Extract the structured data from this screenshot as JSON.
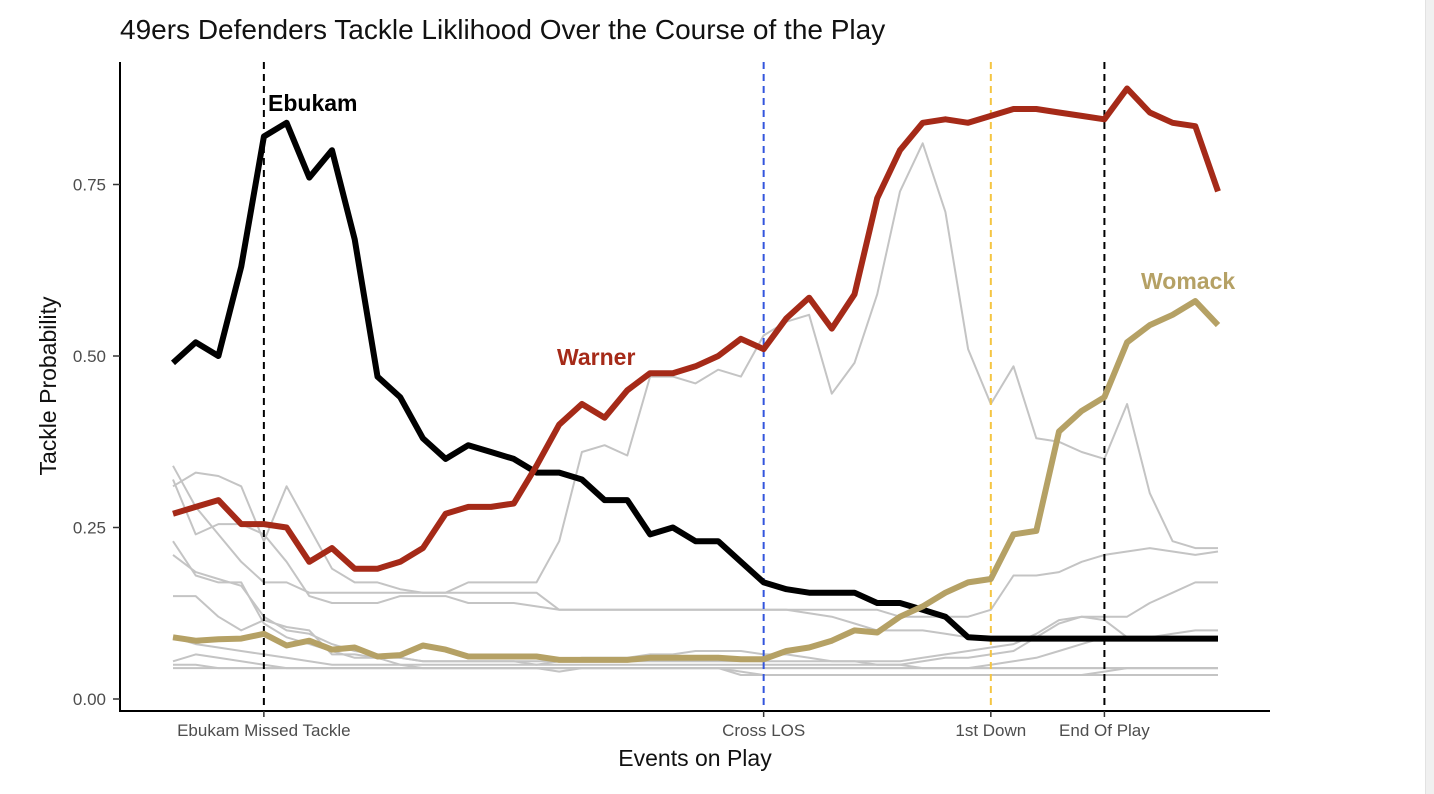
{
  "chart_data": {
    "type": "line",
    "title": "49ers Defenders Tackle Liklihood Over the Course of the Play",
    "xlabel": "Events on Play",
    "ylabel": "Tackle Probability",
    "ylim": [
      0,
      0.9
    ],
    "y_ticks": [
      {
        "value": 0,
        "label": "0.00"
      },
      {
        "value": 0.25,
        "label": "0.25"
      },
      {
        "value": 0.5,
        "label": "0.50"
      },
      {
        "value": 0.75,
        "label": "0.75"
      }
    ],
    "xlim": [
      1,
      47
    ],
    "events": [
      {
        "frame": 5,
        "label": "Ebukam Missed Tackle",
        "color": "#000000"
      },
      {
        "frame": 27,
        "label": "Cross LOS",
        "color": "#3355dd"
      },
      {
        "frame": 37,
        "label": "1st Down",
        "color": "#f5c542"
      },
      {
        "frame": 42,
        "label": "End Of Play",
        "color": "#000000"
      }
    ],
    "grid": false,
    "legend": "none",
    "highlighted_series": [
      {
        "name": "Ebukam",
        "color": "#000000",
        "values": [
          0.49,
          0.52,
          0.5,
          0.63,
          0.82,
          0.84,
          0.76,
          0.8,
          0.67,
          0.47,
          0.44,
          0.38,
          0.35,
          0.37,
          0.36,
          0.35,
          0.33,
          0.33,
          0.32,
          0.29,
          0.29,
          0.24,
          0.25,
          0.23,
          0.23,
          0.2,
          0.17,
          0.16,
          0.155,
          0.155,
          0.155,
          0.14,
          0.14,
          0.13,
          0.12,
          0.09,
          0.088,
          0.088,
          0.088,
          0.088,
          0.088,
          0.088,
          0.088,
          0.088,
          0.088,
          0.088,
          0.088
        ]
      },
      {
        "name": "Warner",
        "color": "#a52a18",
        "values": [
          0.27,
          0.28,
          0.29,
          0.255,
          0.255,
          0.25,
          0.2,
          0.22,
          0.19,
          0.19,
          0.2,
          0.22,
          0.27,
          0.28,
          0.28,
          0.285,
          0.34,
          0.4,
          0.43,
          0.41,
          0.45,
          0.475,
          0.475,
          0.485,
          0.5,
          0.525,
          0.51,
          0.555,
          0.585,
          0.54,
          0.59,
          0.73,
          0.8,
          0.84,
          0.845,
          0.84,
          0.85,
          0.86,
          0.86,
          0.855,
          0.85,
          0.845,
          0.89,
          0.855,
          0.84,
          0.835,
          0.74
        ]
      },
      {
        "name": "Womack",
        "color": "#b5a165",
        "values": [
          0.09,
          0.085,
          0.087,
          0.088,
          0.095,
          0.078,
          0.085,
          0.072,
          0.075,
          0.062,
          0.064,
          0.078,
          0.072,
          0.062,
          0.062,
          0.062,
          0.062,
          0.057,
          0.057,
          0.057,
          0.057,
          0.06,
          0.06,
          0.06,
          0.06,
          0.058,
          0.058,
          0.07,
          0.075,
          0.085,
          0.1,
          0.097,
          0.12,
          0.135,
          0.155,
          0.17,
          0.175,
          0.24,
          0.245,
          0.39,
          0.42,
          0.44,
          0.52,
          0.545,
          0.56,
          0.58,
          0.545
        ]
      }
    ],
    "background_series": [
      {
        "values": [
          0.34,
          0.28,
          0.24,
          0.2,
          0.17,
          0.17,
          0.155,
          0.155,
          0.155,
          0.155,
          0.155,
          0.155,
          0.155,
          0.17,
          0.17,
          0.17,
          0.17,
          0.23,
          0.36,
          0.37,
          0.355,
          0.47,
          0.47,
          0.46,
          0.48,
          0.47,
          0.53,
          0.55,
          0.56,
          0.445,
          0.49,
          0.59,
          0.74,
          0.81,
          0.71,
          0.51,
          0.43,
          0.485,
          0.38,
          0.375,
          0.36,
          0.35,
          0.43,
          0.3,
          0.23,
          0.22,
          0.22
        ]
      },
      {
        "values": [
          0.31,
          0.33,
          0.325,
          0.31,
          0.23,
          0.31,
          0.25,
          0.19,
          0.17,
          0.17,
          0.16,
          0.155,
          0.155,
          0.155,
          0.155,
          0.155,
          0.155,
          0.13,
          0.13,
          0.13,
          0.13,
          0.13,
          0.13,
          0.13,
          0.13,
          0.13,
          0.13,
          0.13,
          0.13,
          0.13,
          0.13,
          0.13,
          0.12,
          0.12,
          0.12,
          0.12,
          0.13,
          0.18,
          0.18,
          0.185,
          0.2,
          0.21,
          0.215,
          0.22,
          0.215,
          0.21,
          0.215
        ]
      },
      {
        "values": [
          0.32,
          0.24,
          0.255,
          0.255,
          0.24,
          0.2,
          0.15,
          0.14,
          0.14,
          0.14,
          0.15,
          0.15,
          0.15,
          0.14,
          0.14,
          0.14,
          0.135,
          0.13,
          0.13,
          0.13,
          0.13,
          0.13,
          0.13,
          0.13,
          0.13,
          0.13,
          0.13,
          0.13,
          0.125,
          0.12,
          0.11,
          0.1,
          0.1,
          0.1,
          0.095,
          0.09,
          0.09,
          0.09,
          0.09,
          0.09,
          0.09,
          0.09,
          0.09,
          0.09,
          0.09,
          0.09,
          0.09
        ]
      },
      {
        "values": [
          0.23,
          0.18,
          0.17,
          0.17,
          0.11,
          0.09,
          0.08,
          0.07,
          0.06,
          0.06,
          0.06,
          0.055,
          0.055,
          0.055,
          0.055,
          0.055,
          0.05,
          0.05,
          0.05,
          0.05,
          0.05,
          0.05,
          0.05,
          0.05,
          0.05,
          0.05,
          0.05,
          0.05,
          0.05,
          0.05,
          0.05,
          0.05,
          0.05,
          0.055,
          0.06,
          0.06,
          0.065,
          0.07,
          0.09,
          0.11,
          0.12,
          0.12,
          0.12,
          0.14,
          0.155,
          0.17,
          0.17
        ]
      },
      {
        "values": [
          0.21,
          0.185,
          0.175,
          0.165,
          0.12,
          0.1,
          0.095,
          0.08,
          0.07,
          0.065,
          0.06,
          0.055,
          0.055,
          0.055,
          0.055,
          0.055,
          0.055,
          0.055,
          0.055,
          0.055,
          0.055,
          0.055,
          0.055,
          0.055,
          0.055,
          0.055,
          0.055,
          0.055,
          0.055,
          0.055,
          0.055,
          0.055,
          0.055,
          0.06,
          0.065,
          0.07,
          0.075,
          0.08,
          0.095,
          0.115,
          0.12,
          0.115,
          0.09,
          0.09,
          0.09,
          0.09,
          0.09
        ]
      },
      {
        "values": [
          0.15,
          0.15,
          0.12,
          0.1,
          0.115,
          0.105,
          0.1,
          0.065,
          0.065,
          0.06,
          0.05,
          0.045,
          0.045,
          0.045,
          0.045,
          0.045,
          0.045,
          0.04,
          0.045,
          0.045,
          0.045,
          0.045,
          0.045,
          0.045,
          0.045,
          0.045,
          0.045,
          0.045,
          0.045,
          0.045,
          0.045,
          0.045,
          0.045,
          0.045,
          0.045,
          0.045,
          0.05,
          0.055,
          0.06,
          0.07,
          0.08,
          0.09,
          0.09,
          0.09,
          0.095,
          0.1,
          0.1
        ]
      },
      {
        "values": [
          0.09,
          0.08,
          0.075,
          0.07,
          0.065,
          0.06,
          0.055,
          0.05,
          0.05,
          0.05,
          0.05,
          0.05,
          0.05,
          0.05,
          0.05,
          0.05,
          0.05,
          0.055,
          0.06,
          0.06,
          0.06,
          0.065,
          0.065,
          0.07,
          0.07,
          0.07,
          0.065,
          0.065,
          0.06,
          0.055,
          0.055,
          0.05,
          0.05,
          0.045,
          0.045,
          0.045,
          0.045,
          0.045,
          0.045,
          0.045,
          0.045,
          0.045,
          0.045,
          0.045,
          0.045,
          0.045,
          0.045
        ]
      },
      {
        "values": [
          0.055,
          0.065,
          0.06,
          0.055,
          0.05,
          0.045,
          0.045,
          0.045,
          0.045,
          0.045,
          0.045,
          0.045,
          0.045,
          0.045,
          0.045,
          0.045,
          0.045,
          0.045,
          0.045,
          0.045,
          0.045,
          0.045,
          0.045,
          0.045,
          0.045,
          0.04,
          0.035,
          0.035,
          0.035,
          0.035,
          0.035,
          0.035,
          0.035,
          0.035,
          0.035,
          0.035,
          0.035,
          0.035,
          0.035,
          0.035,
          0.035,
          0.04,
          0.045,
          0.045,
          0.045,
          0.045,
          0.045
        ]
      },
      {
        "values": [
          0.05,
          0.05,
          0.045,
          0.045,
          0.045,
          0.045,
          0.045,
          0.045,
          0.045,
          0.045,
          0.045,
          0.045,
          0.045,
          0.045,
          0.045,
          0.045,
          0.045,
          0.045,
          0.045,
          0.045,
          0.045,
          0.045,
          0.045,
          0.045,
          0.045,
          0.045,
          0.045,
          0.045,
          0.045,
          0.045,
          0.045,
          0.045,
          0.045,
          0.045,
          0.045,
          0.045,
          0.045,
          0.045,
          0.045,
          0.045,
          0.045,
          0.045,
          0.045,
          0.045,
          0.045,
          0.045,
          0.045
        ]
      },
      {
        "values": [
          0.045,
          0.045,
          0.045,
          0.045,
          0.045,
          0.045,
          0.045,
          0.045,
          0.045,
          0.045,
          0.045,
          0.045,
          0.045,
          0.045,
          0.045,
          0.045,
          0.045,
          0.045,
          0.045,
          0.045,
          0.045,
          0.045,
          0.045,
          0.045,
          0.045,
          0.035,
          0.035,
          0.035,
          0.035,
          0.035,
          0.035,
          0.035,
          0.035,
          0.035,
          0.035,
          0.035,
          0.035,
          0.035,
          0.035,
          0.035,
          0.035,
          0.035,
          0.035,
          0.035,
          0.035,
          0.035,
          0.035
        ]
      }
    ]
  }
}
